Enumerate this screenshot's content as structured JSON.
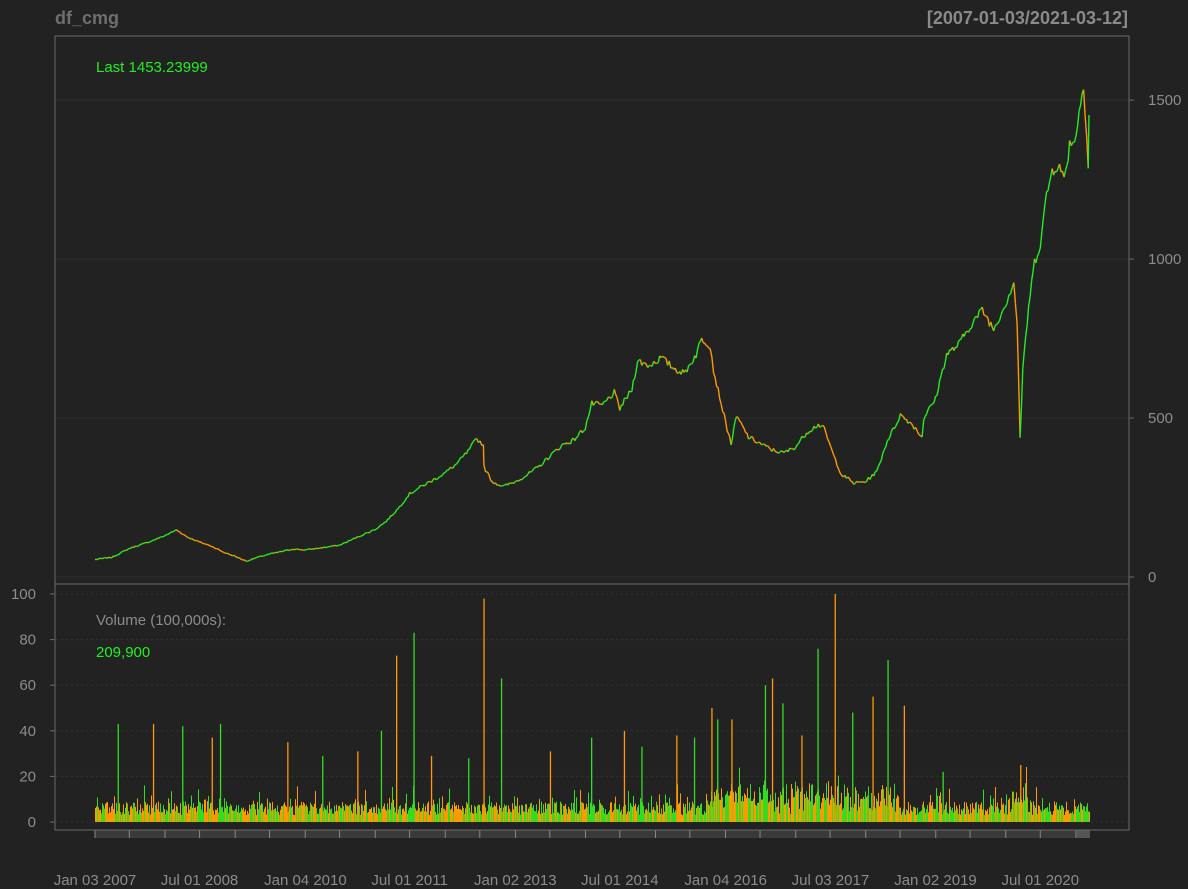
{
  "chart_data": {
    "type": "line",
    "title": "df_cmg",
    "date_range": "[2007-01-03/2021-03-12]",
    "price_panel": {
      "last_label": "Last 1453.23999",
      "ylim": [
        0,
        1620
      ],
      "y_ticks": [
        0,
        500,
        1000,
        1500
      ],
      "grid": true,
      "colors": {
        "up": "#22ee22",
        "down": "#ff9900"
      },
      "series": [
        {
          "values": [
            [
              "2007-01-03",
              55
            ],
            [
              "2007-04-02",
              62
            ],
            [
              "2007-07-02",
              90
            ],
            [
              "2007-10-01",
              108
            ],
            [
              "2008-01-02",
              130
            ],
            [
              "2008-03-03",
              148
            ],
            [
              "2008-05-01",
              125
            ],
            [
              "2008-07-01",
              110
            ],
            [
              "2008-09-02",
              97
            ],
            [
              "2008-11-03",
              78
            ],
            [
              "2009-01-02",
              65
            ],
            [
              "2009-03-02",
              50
            ],
            [
              "2009-05-01",
              62
            ],
            [
              "2009-07-01",
              72
            ],
            [
              "2009-09-01",
              80
            ],
            [
              "2009-11-02",
              88
            ],
            [
              "2010-01-04",
              85
            ],
            [
              "2010-04-01",
              92
            ],
            [
              "2010-07-01",
              100
            ],
            [
              "2010-10-01",
              125
            ],
            [
              "2011-01-03",
              150
            ],
            [
              "2011-03-01",
              175
            ],
            [
              "2011-05-02",
              215
            ],
            [
              "2011-07-01",
              262
            ],
            [
              "2011-09-01",
              285
            ],
            [
              "2011-11-01",
              305
            ],
            [
              "2012-01-03",
              328
            ],
            [
              "2012-03-01",
              355
            ],
            [
              "2012-05-01",
              395
            ],
            [
              "2012-06-15",
              435
            ],
            [
              "2012-07-20",
              415
            ],
            [
              "2012-07-23",
              345
            ],
            [
              "2012-09-04",
              300
            ],
            [
              "2012-11-01",
              285
            ],
            [
              "2013-01-02",
              300
            ],
            [
              "2013-03-01",
              320
            ],
            [
              "2013-05-01",
              345
            ],
            [
              "2013-07-01",
              380
            ],
            [
              "2013-09-03",
              415
            ],
            [
              "2013-11-01",
              430
            ],
            [
              "2014-01-02",
              470
            ],
            [
              "2014-02-05",
              545
            ],
            [
              "2014-04-01",
              540
            ],
            [
              "2014-06-02",
              580
            ],
            [
              "2014-07-01",
              530
            ],
            [
              "2014-09-02",
              590
            ],
            [
              "2014-10-01",
              680
            ],
            [
              "2014-12-01",
              665
            ],
            [
              "2015-02-02",
              690
            ],
            [
              "2015-04-01",
              660
            ],
            [
              "2015-06-01",
              640
            ],
            [
              "2015-08-03",
              700
            ],
            [
              "2015-09-01",
              750
            ],
            [
              "2015-10-15",
              730
            ],
            [
              "2015-11-02",
              650
            ],
            [
              "2016-01-04",
              485
            ],
            [
              "2016-02-01",
              420
            ],
            [
              "2016-03-01",
              505
            ],
            [
              "2016-05-02",
              440
            ],
            [
              "2016-07-01",
              420
            ],
            [
              "2016-09-01",
              400
            ],
            [
              "2016-11-01",
              390
            ],
            [
              "2017-01-03",
              410
            ],
            [
              "2017-03-01",
              455
            ],
            [
              "2017-05-01",
              480
            ],
            [
              "2017-06-01",
              465
            ],
            [
              "2017-07-21",
              380
            ],
            [
              "2017-09-01",
              320
            ],
            [
              "2017-10-02",
              310
            ],
            [
              "2017-11-01",
              295
            ],
            [
              "2018-01-02",
              300
            ],
            [
              "2018-02-07",
              320
            ],
            [
              "2018-03-01",
              330
            ],
            [
              "2018-04-26",
              430
            ],
            [
              "2018-06-01",
              470
            ],
            [
              "2018-07-02",
              510
            ],
            [
              "2018-09-04",
              480
            ],
            [
              "2018-10-24",
              440
            ],
            [
              "2018-11-01",
              500
            ],
            [
              "2019-01-02",
              560
            ],
            [
              "2019-02-07",
              650
            ],
            [
              "2019-03-01",
              700
            ],
            [
              "2019-05-01",
              730
            ],
            [
              "2019-07-01",
              790
            ],
            [
              "2019-09-03",
              840
            ],
            [
              "2019-11-01",
              780
            ],
            [
              "2020-01-02",
              860
            ],
            [
              "2020-02-14",
              930
            ],
            [
              "2020-03-02",
              800
            ],
            [
              "2020-03-18",
              440
            ],
            [
              "2020-04-01",
              650
            ],
            [
              "2020-05-01",
              850
            ],
            [
              "2020-06-01",
              990
            ],
            [
              "2020-07-01",
              1050
            ],
            [
              "2020-08-03",
              1200
            ],
            [
              "2020-09-01",
              1280
            ],
            [
              "2020-10-01",
              1300
            ],
            [
              "2020-11-02",
              1250
            ],
            [
              "2020-12-01",
              1360
            ],
            [
              "2021-01-04",
              1390
            ],
            [
              "2021-02-12",
              1560
            ],
            [
              "2021-03-08",
              1300
            ],
            [
              "2021-03-12",
              1453.24
            ]
          ]
        }
      ]
    },
    "volume_panel": {
      "label": "Volume (100,000s):",
      "last_value": "209,900",
      "ylim": [
        0,
        100
      ],
      "y_ticks": [
        0,
        20,
        40,
        60,
        80,
        100
      ],
      "spikes": [
        [
          "2007-05-01",
          43
        ],
        [
          "2007-11-01",
          43
        ],
        [
          "2008-04-01",
          42
        ],
        [
          "2008-09-02",
          37
        ],
        [
          "2008-10-15",
          43
        ],
        [
          "2009-10-01",
          35
        ],
        [
          "2010-04-01",
          29
        ],
        [
          "2010-10-01",
          31
        ],
        [
          "2011-02-01",
          40
        ],
        [
          "2011-04-21",
          73
        ],
        [
          "2011-07-21",
          83
        ],
        [
          "2011-10-20",
          29
        ],
        [
          "2012-05-01",
          28
        ],
        [
          "2012-07-20",
          98
        ],
        [
          "2012-10-19",
          63
        ],
        [
          "2013-07-01",
          31
        ],
        [
          "2014-02-01",
          37
        ],
        [
          "2014-07-22",
          40
        ],
        [
          "2014-10-21",
          33
        ],
        [
          "2015-04-21",
          38
        ],
        [
          "2015-07-22",
          37
        ],
        [
          "2015-10-21",
          50
        ],
        [
          "2015-11-20",
          45
        ],
        [
          "2016-02-02",
          45
        ],
        [
          "2016-07-26",
          60
        ],
        [
          "2016-09-01",
          63
        ],
        [
          "2016-10-25",
          52
        ],
        [
          "2017-02-01",
          38
        ],
        [
          "2017-04-26",
          76
        ],
        [
          "2017-07-25",
          100
        ],
        [
          "2017-10-24",
          48
        ],
        [
          "2018-02-07",
          55
        ],
        [
          "2018-04-26",
          71
        ],
        [
          "2018-07-20",
          51
        ],
        [
          "2019-02-07",
          22
        ],
        [
          "2020-03-18",
          25
        ]
      ]
    },
    "x_labels": [
      "Jan 03 2007",
      "Jul 01 2008",
      "Jan 04 2010",
      "Jul 01 2011",
      "Jan 02 2013",
      "Jul 01 2014",
      "Jan 04 2016",
      "Jul 03 2017",
      "Jan 02 2019",
      "Jul 01 2020"
    ],
    "x_label_dates": [
      "2007-01-03",
      "2008-07-01",
      "2010-01-04",
      "2011-07-01",
      "2013-01-02",
      "2014-07-01",
      "2016-01-04",
      "2017-07-03",
      "2019-01-02",
      "2020-07-01"
    ],
    "xlim": [
      "2007-01-03",
      "2021-03-12"
    ]
  }
}
